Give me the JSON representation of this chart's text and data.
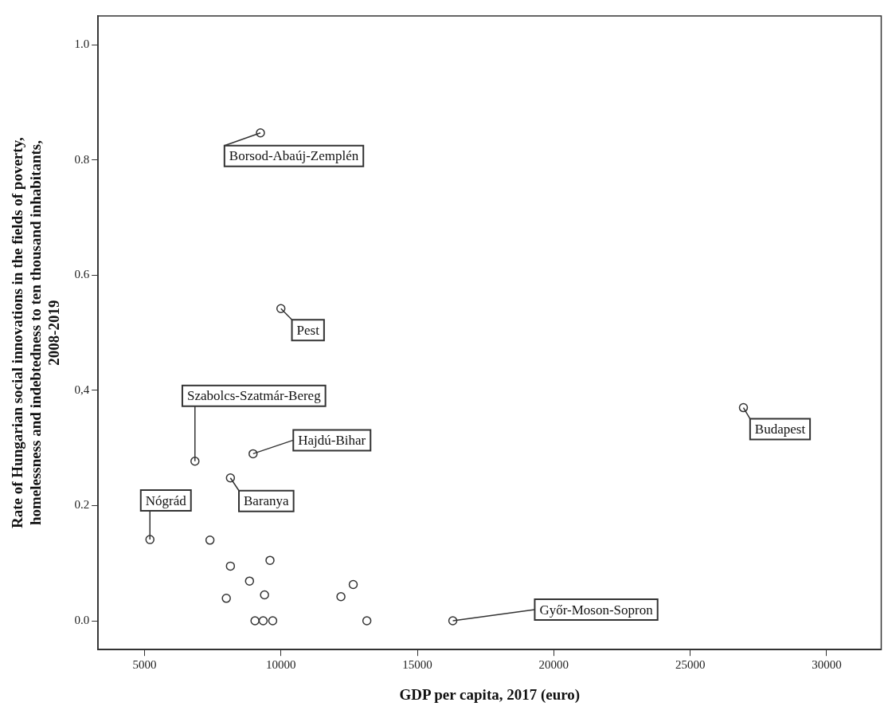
{
  "chart_data": {
    "type": "scatter",
    "xlabel": "GDP per capita, 2017 (euro)",
    "ylabel": "Rate of Hungarian social innovations in the fields of poverty,\nhomelessness and indebtedness to ten thousand inhabitants,\n2008-2019",
    "x": [
      9250,
      10000,
      26950,
      6850,
      8980,
      8150,
      5200,
      7400,
      8150,
      9600,
      8850,
      9400,
      8000,
      12200,
      12650,
      9050,
      9350,
      9700,
      13150,
      16300
    ],
    "series": [
      {
        "color": "#333333",
        "values": [
          0.847,
          0.542,
          0.37,
          0.277,
          0.29,
          0.248,
          0.141,
          0.14,
          0.095,
          0.105,
          0.069,
          0.045,
          0.039,
          0.042,
          0.063,
          0,
          0,
          0,
          0,
          0
        ]
      }
    ],
    "xlim": [
      3300,
      32000
    ],
    "xticks": [
      5000,
      10000,
      15000,
      20000,
      25000,
      30000
    ],
    "ylim": [
      -0.05,
      1.05
    ],
    "yticks": [
      {
        "value": 0,
        "label": "0.0"
      },
      {
        "value": 0.2,
        "label": "0.2"
      },
      {
        "value": 0.4,
        "label": "0,4"
      },
      {
        "value": 0.6,
        "label": "0.6"
      },
      {
        "value": 0.8,
        "label": "0.8"
      },
      {
        "value": 1,
        "label": "1.0"
      }
    ],
    "grid": false,
    "legend": false,
    "marker": "circle",
    "annotations": [
      {
        "text": "Borsod-Abaúj-Zemplén",
        "x": 9250,
        "y": 0.847
      },
      {
        "text": "Pest",
        "x": 10000,
        "y": 0.542
      },
      {
        "text": "Budapest",
        "x": 26950,
        "y": 0.37
      },
      {
        "text": "Szabolcs-Szatmár-Bereg",
        "x": 6850,
        "y": 0.277
      },
      {
        "text": "Hajdú-Bihar",
        "x": 8980,
        "y": 0.29
      },
      {
        "text": "Baranya",
        "x": 8150,
        "y": 0.248
      },
      {
        "text": "Nógrád",
        "x": 5200,
        "y": 0.141
      },
      {
        "text": "Győr-Moson-Sopron",
        "x": 16300,
        "y": 0
      }
    ]
  }
}
